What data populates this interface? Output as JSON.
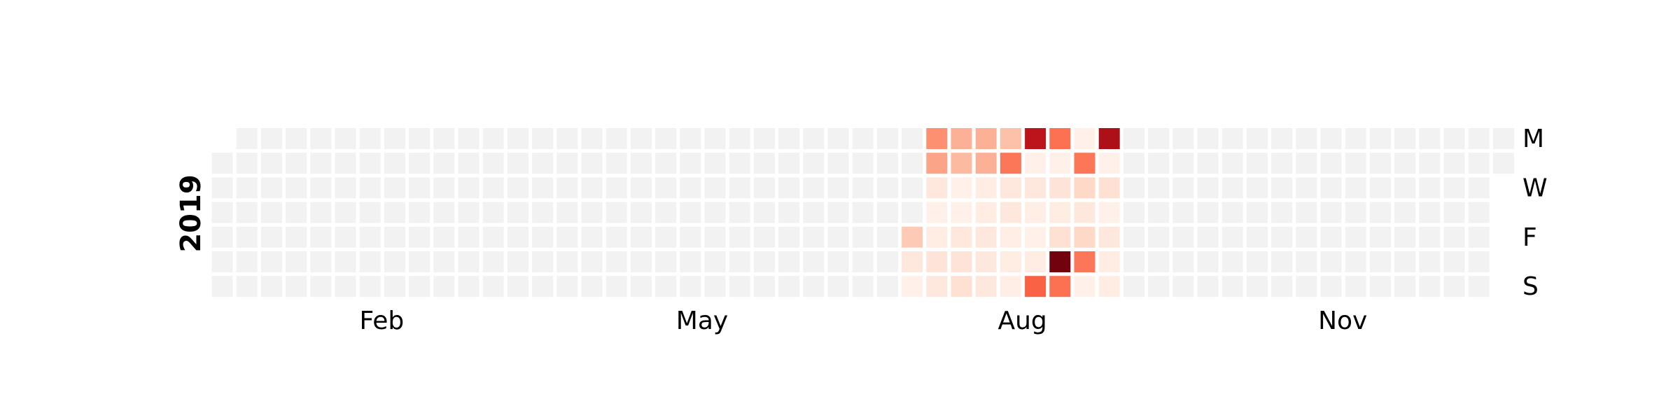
{
  "chart_data": {
    "type": "heatmap",
    "year": "2019",
    "month_labels": [
      "Feb",
      "May",
      "Aug",
      "Nov"
    ],
    "weekday_labels": [
      "M",
      "W",
      "F",
      "S"
    ],
    "colormap": "Reds",
    "empty_color": "#f2f2f2",
    "value_range": [
      0,
      10
    ],
    "levels": [
      {
        "week": 28,
        "values": [
          null,
          null,
          null,
          null,
          2,
          0.8,
          0.3
        ]
      },
      {
        "week": 29,
        "values": [
          3.8,
          3.2,
          0.8,
          0.3,
          0.5,
          1.0,
          0.8
        ]
      },
      {
        "week": 30,
        "values": [
          2.8,
          2.5,
          0.3,
          0.3,
          0.8,
          1.0,
          1.2
        ]
      },
      {
        "week": 31,
        "values": [
          2.8,
          2.8,
          0.5,
          0.5,
          0.8,
          0.8,
          0.8
        ]
      },
      {
        "week": 32,
        "values": [
          2.3,
          4.6,
          0.8,
          0.8,
          0.4,
          0.5,
          0.4
        ]
      },
      {
        "week": 33,
        "values": [
          8.0,
          0.3,
          0.8,
          0.4,
          0.3,
          0.5,
          5.2
        ]
      },
      {
        "week": 34,
        "values": [
          4.8,
          0.3,
          1.0,
          0.5,
          1.2,
          9.8,
          4.8
        ]
      },
      {
        "week": 35,
        "values": [
          0.3,
          4.6,
          1.5,
          0.8,
          1.5,
          4.6,
          0.3
        ]
      },
      {
        "week": 36,
        "values": [
          8.5,
          0.3,
          1.2,
          0.3,
          0.8,
          0.5,
          0.5
        ]
      }
    ]
  }
}
